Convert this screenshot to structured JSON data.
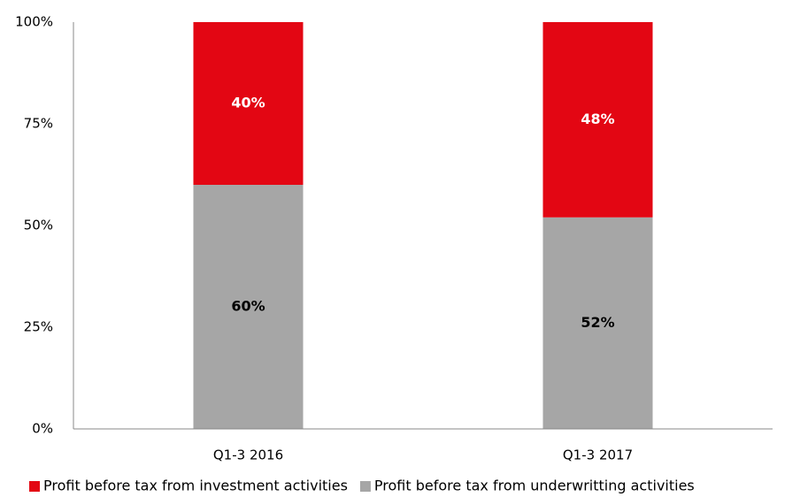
{
  "chart_data": {
    "type": "stacked_bar",
    "categories": [
      "Q1-3 2016",
      "Q1-3 2017"
    ],
    "series": [
      {
        "name": "Profit before tax from investment activities",
        "color": "#e30613",
        "label_color": "#ffffff",
        "values": [
          40,
          48
        ],
        "value_labels": [
          "40%",
          "48%"
        ]
      },
      {
        "name": "Profit before tax from underwritting activities",
        "color": "#a6a6a6",
        "label_color": "#000000",
        "values": [
          60,
          52
        ],
        "value_labels": [
          "60%",
          "52%"
        ]
      }
    ],
    "ylim": [
      0,
      100
    ],
    "yticks": [
      {
        "value": 0,
        "label": "0%"
      },
      {
        "value": 25,
        "label": "25%"
      },
      {
        "value": 50,
        "label": "50%"
      },
      {
        "value": 75,
        "label": "75%"
      },
      {
        "value": 100,
        "label": "100%"
      }
    ],
    "grid": false,
    "legend": "bottom"
  }
}
